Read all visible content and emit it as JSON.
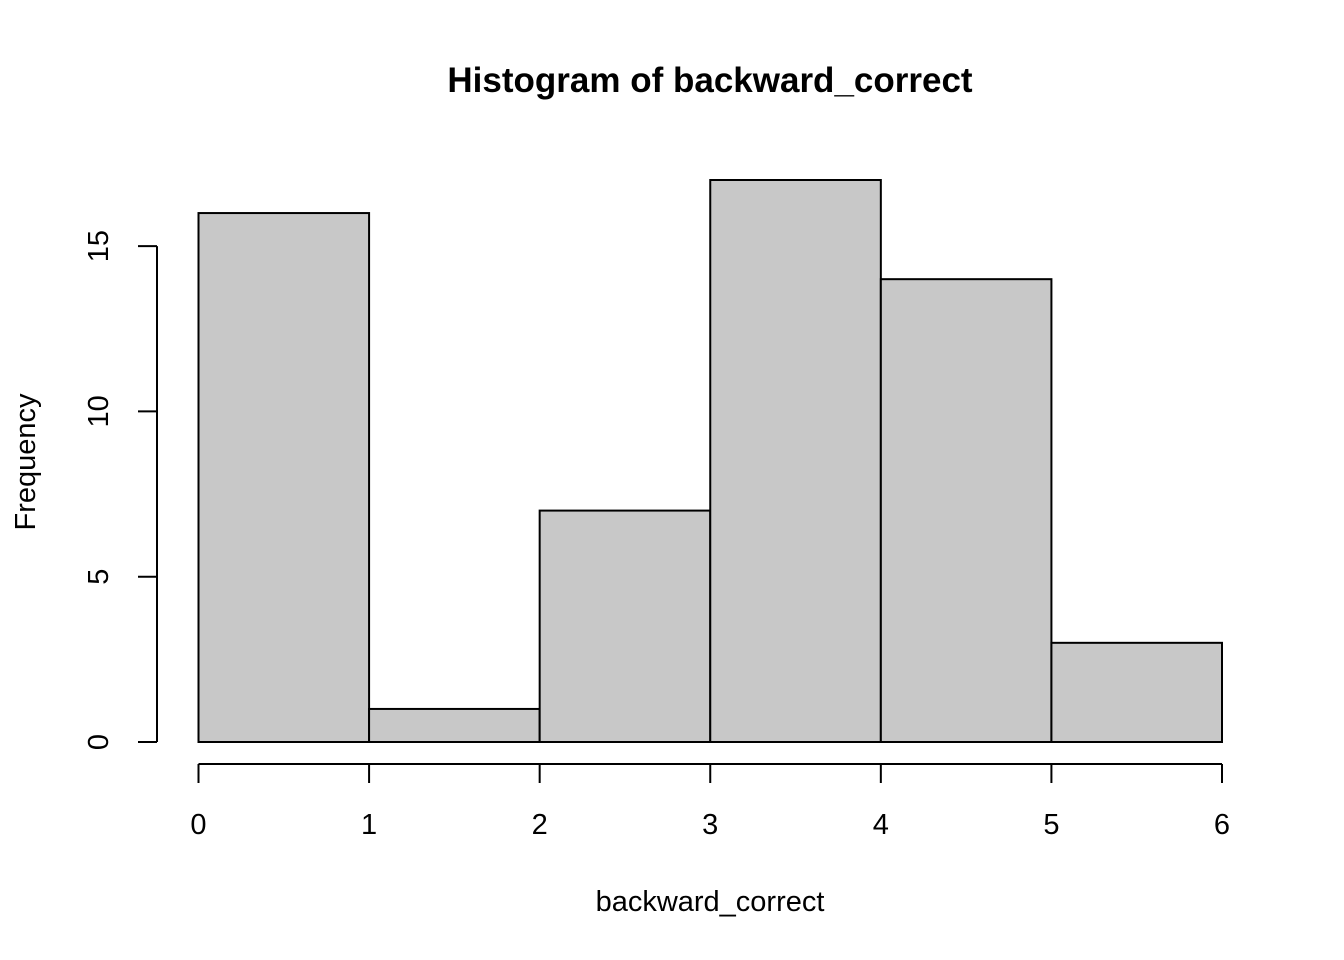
{
  "chart_data": {
    "type": "bar",
    "title": "Histogram of backward_correct",
    "xlabel": "backward_correct",
    "ylabel": "Frequency",
    "bins": [
      {
        "start": 0,
        "end": 1,
        "count": 16
      },
      {
        "start": 1,
        "end": 2,
        "count": 1
      },
      {
        "start": 2,
        "end": 3,
        "count": 7
      },
      {
        "start": 3,
        "end": 4,
        "count": 17
      },
      {
        "start": 4,
        "end": 5,
        "count": 14
      },
      {
        "start": 5,
        "end": 6,
        "count": 3
      }
    ],
    "xlim": [
      0,
      6
    ],
    "ylim": [
      0,
      17
    ],
    "x_ticks": [
      0,
      1,
      2,
      3,
      4,
      5,
      6
    ],
    "y_ticks": [
      0,
      5,
      10,
      15
    ],
    "grid": false,
    "legend": "none",
    "colors": {
      "bar_fill": "#c8c8c8",
      "bar_stroke": "#000000",
      "axis": "#000000",
      "background": "#ffffff"
    }
  }
}
